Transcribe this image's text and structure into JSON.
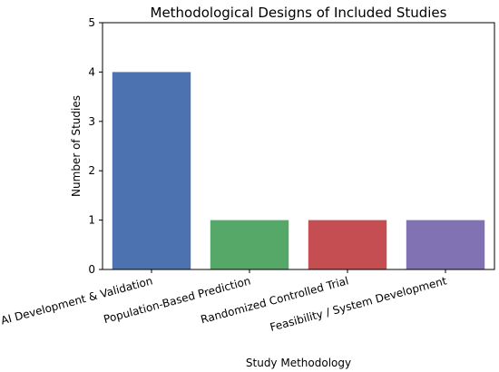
{
  "chart_data": {
    "type": "bar",
    "title": "Methodological Designs of Included Studies",
    "xlabel": "Study Methodology",
    "ylabel": "Number of Studies",
    "categories": [
      "AI Development & Validation",
      "Population-Based Prediction",
      "Randomized Controlled Trial",
      "Feasibility / System Development"
    ],
    "values": [
      4,
      1,
      1,
      1
    ],
    "colors": [
      "#4c72b0",
      "#55a868",
      "#c44e52",
      "#8172b3"
    ],
    "ylim": [
      0,
      5
    ],
    "yticks": [
      "0",
      "1",
      "2",
      "3",
      "4",
      "5"
    ],
    "grid": false,
    "legend": "none"
  }
}
